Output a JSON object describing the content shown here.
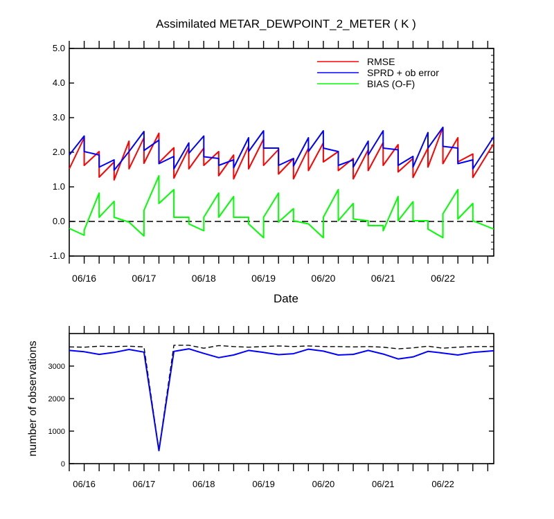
{
  "chart_data": [
    {
      "type": "line",
      "title": "Assimilated METAR_DEWPOINT_2_METER ( K )",
      "xlabel": "Date",
      "ylabel": "",
      "xlim": [
        15.75,
        22.85
      ],
      "ylim": [
        -1.0,
        5.0
      ],
      "yticks": [
        "-1.0",
        "0.0",
        "1.0",
        "2.0",
        "3.0",
        "4.0",
        "5.0"
      ],
      "xticks": [
        {
          "x": 16.0,
          "label": "06/16"
        },
        {
          "x": 17.0,
          "label": "06/17"
        },
        {
          "x": 18.0,
          "label": "06/18"
        },
        {
          "x": 19.0,
          "label": "06/19"
        },
        {
          "x": 20.0,
          "label": "06/20"
        },
        {
          "x": 21.0,
          "label": "06/21"
        },
        {
          "x": 22.0,
          "label": "06/22"
        }
      ],
      "reference_line": 0.0,
      "legend": {
        "placement": "top-right",
        "entries": [
          "RMSE",
          "SPRD + ob error",
          "BIAS (O-F)"
        ]
      },
      "series": [
        {
          "name": "RMSE",
          "color": "#ff0000",
          "points": [
            [
              15.75,
              1.52
            ],
            [
              16.0,
              2.42
            ],
            [
              16.0,
              1.62
            ],
            [
              16.25,
              2.02
            ],
            [
              16.25,
              1.28
            ],
            [
              16.5,
              1.72
            ],
            [
              16.5,
              1.2
            ],
            [
              16.75,
              2.32
            ],
            [
              16.75,
              1.52
            ],
            [
              17.0,
              2.42
            ],
            [
              17.0,
              1.68
            ],
            [
              17.25,
              2.55
            ],
            [
              17.25,
              1.7
            ],
            [
              17.5,
              2.13
            ],
            [
              17.5,
              1.25
            ],
            [
              17.75,
              2.12
            ],
            [
              17.75,
              1.52
            ],
            [
              18.0,
              2.12
            ],
            [
              18.0,
              1.62
            ],
            [
              18.25,
              2.02
            ],
            [
              18.25,
              1.32
            ],
            [
              18.5,
              1.92
            ],
            [
              18.5,
              1.23
            ],
            [
              18.75,
              2.18
            ],
            [
              18.75,
              1.52
            ],
            [
              19.0,
              2.38
            ],
            [
              19.0,
              1.62
            ],
            [
              19.25,
              2.08
            ],
            [
              19.25,
              1.37
            ],
            [
              19.5,
              1.82
            ],
            [
              19.5,
              1.23
            ],
            [
              19.75,
              2.12
            ],
            [
              19.75,
              1.47
            ],
            [
              20.0,
              2.27
            ],
            [
              20.0,
              1.72
            ],
            [
              20.25,
              2.02
            ],
            [
              20.25,
              1.47
            ],
            [
              20.5,
              1.82
            ],
            [
              20.5,
              1.23
            ],
            [
              20.75,
              2.07
            ],
            [
              20.75,
              1.47
            ],
            [
              21.0,
              2.28
            ],
            [
              21.0,
              1.62
            ],
            [
              21.25,
              2.22
            ],
            [
              21.25,
              1.43
            ],
            [
              21.5,
              1.82
            ],
            [
              21.5,
              1.27
            ],
            [
              21.75,
              2.12
            ],
            [
              21.75,
              1.57
            ],
            [
              22.0,
              2.72
            ],
            [
              22.0,
              1.67
            ],
            [
              22.25,
              2.42
            ],
            [
              22.25,
              1.72
            ],
            [
              22.5,
              1.95
            ],
            [
              22.5,
              1.27
            ],
            [
              22.85,
              2.25
            ]
          ]
        },
        {
          "name": "SPRD + ob error",
          "color": "#0000ff",
          "points": [
            [
              15.75,
              1.92
            ],
            [
              16.0,
              2.47
            ],
            [
              16.0,
              2.02
            ],
            [
              16.25,
              1.92
            ],
            [
              16.25,
              1.57
            ],
            [
              16.5,
              1.78
            ],
            [
              16.5,
              1.48
            ],
            [
              16.75,
              2.02
            ],
            [
              16.75,
              2.02
            ],
            [
              17.0,
              2.6
            ],
            [
              17.0,
              2.05
            ],
            [
              17.25,
              2.35
            ],
            [
              17.25,
              1.67
            ],
            [
              17.5,
              1.88
            ],
            [
              17.5,
              1.52
            ],
            [
              17.75,
              2.27
            ],
            [
              17.75,
              1.97
            ],
            [
              18.0,
              2.47
            ],
            [
              18.0,
              1.87
            ],
            [
              18.25,
              1.82
            ],
            [
              18.25,
              1.62
            ],
            [
              18.5,
              1.78
            ],
            [
              18.5,
              1.55
            ],
            [
              18.75,
              2.42
            ],
            [
              18.75,
              2.02
            ],
            [
              19.0,
              2.62
            ],
            [
              19.0,
              2.12
            ],
            [
              19.25,
              2.12
            ],
            [
              19.25,
              1.62
            ],
            [
              19.5,
              1.82
            ],
            [
              19.5,
              1.6
            ],
            [
              19.75,
              2.42
            ],
            [
              19.75,
              2.02
            ],
            [
              20.0,
              2.62
            ],
            [
              20.0,
              2.12
            ],
            [
              20.25,
              2.02
            ],
            [
              20.25,
              1.62
            ],
            [
              20.5,
              1.78
            ],
            [
              20.5,
              1.57
            ],
            [
              20.75,
              2.32
            ],
            [
              20.75,
              1.92
            ],
            [
              21.0,
              2.62
            ],
            [
              21.0,
              2.12
            ],
            [
              21.25,
              2.07
            ],
            [
              21.25,
              1.62
            ],
            [
              21.5,
              1.88
            ],
            [
              21.5,
              1.57
            ],
            [
              21.75,
              2.57
            ],
            [
              21.75,
              2.12
            ],
            [
              22.0,
              2.72
            ],
            [
              22.0,
              2.17
            ],
            [
              22.25,
              2.12
            ],
            [
              22.25,
              1.67
            ],
            [
              22.5,
              1.78
            ],
            [
              22.5,
              1.52
            ],
            [
              22.85,
              2.45
            ]
          ]
        },
        {
          "name": "BIAS (O-F)",
          "color": "#00ff00",
          "points": [
            [
              15.75,
              -0.2
            ],
            [
              16.0,
              -0.4
            ],
            [
              16.0,
              -0.25
            ],
            [
              16.25,
              0.82
            ],
            [
              16.25,
              0.12
            ],
            [
              16.5,
              0.58
            ],
            [
              16.5,
              0.12
            ],
            [
              16.75,
              -0.02
            ],
            [
              16.75,
              -0.02
            ],
            [
              17.0,
              -0.42
            ],
            [
              17.0,
              0.32
            ],
            [
              17.25,
              1.32
            ],
            [
              17.25,
              0.52
            ],
            [
              17.5,
              0.92
            ],
            [
              17.5,
              0.12
            ],
            [
              17.75,
              0.12
            ],
            [
              17.75,
              -0.07
            ],
            [
              18.0,
              -0.27
            ],
            [
              18.0,
              0.12
            ],
            [
              18.25,
              0.82
            ],
            [
              18.25,
              0.12
            ],
            [
              18.5,
              0.72
            ],
            [
              18.5,
              0.12
            ],
            [
              18.75,
              0.12
            ],
            [
              18.75,
              -0.07
            ],
            [
              19.0,
              -0.47
            ],
            [
              19.0,
              0.12
            ],
            [
              19.25,
              0.82
            ],
            [
              19.25,
              -0.02
            ],
            [
              19.5,
              0.37
            ],
            [
              19.5,
              0.02
            ],
            [
              19.75,
              -0.07
            ],
            [
              19.75,
              -0.07
            ],
            [
              20.0,
              -0.47
            ],
            [
              20.0,
              0.12
            ],
            [
              20.25,
              0.92
            ],
            [
              20.25,
              0.02
            ],
            [
              20.5,
              0.52
            ],
            [
              20.5,
              0.07
            ],
            [
              20.75,
              0.02
            ],
            [
              20.75,
              -0.12
            ],
            [
              21.0,
              -0.12
            ],
            [
              21.0,
              -0.27
            ],
            [
              21.25,
              0.72
            ],
            [
              21.25,
              0.02
            ],
            [
              21.5,
              0.57
            ],
            [
              21.5,
              0.02
            ],
            [
              21.75,
              0.02
            ],
            [
              21.75,
              -0.22
            ],
            [
              22.0,
              -0.47
            ],
            [
              22.0,
              0.22
            ],
            [
              22.25,
              0.92
            ],
            [
              22.25,
              0.07
            ],
            [
              22.5,
              0.52
            ],
            [
              22.5,
              0.02
            ],
            [
              22.85,
              -0.22
            ]
          ]
        }
      ]
    },
    {
      "type": "line",
      "title": "",
      "xlabel": "",
      "ylabel": "number of observations",
      "xlim": [
        15.75,
        22.85
      ],
      "ylim": [
        0,
        4000
      ],
      "yticks": [
        "0",
        "1000",
        "2000",
        "3000"
      ],
      "xticks": [
        {
          "x": 16.0,
          "label": "06/16"
        },
        {
          "x": 17.0,
          "label": "06/17"
        },
        {
          "x": 18.0,
          "label": "06/18"
        },
        {
          "x": 19.0,
          "label": "06/19"
        },
        {
          "x": 20.0,
          "label": "06/20"
        },
        {
          "x": 21.0,
          "label": "06/21"
        },
        {
          "x": 22.0,
          "label": "06/22"
        }
      ],
      "series": [
        {
          "name": "",
          "color": "#000000",
          "dashed": true,
          "points": [
            [
              15.75,
              3590
            ],
            [
              16.0,
              3580
            ],
            [
              16.25,
              3610
            ],
            [
              16.5,
              3600
            ],
            [
              16.75,
              3610
            ],
            [
              17.0,
              3590
            ],
            [
              17.25,
              420
            ],
            [
              17.5,
              3640
            ],
            [
              17.75,
              3640
            ],
            [
              18.0,
              3550
            ],
            [
              18.25,
              3630
            ],
            [
              18.5,
              3600
            ],
            [
              18.75,
              3580
            ],
            [
              19.0,
              3600
            ],
            [
              19.25,
              3620
            ],
            [
              19.5,
              3600
            ],
            [
              19.75,
              3620
            ],
            [
              20.0,
              3600
            ],
            [
              20.25,
              3600
            ],
            [
              20.5,
              3590
            ],
            [
              20.75,
              3600
            ],
            [
              21.0,
              3580
            ],
            [
              21.25,
              3530
            ],
            [
              21.5,
              3560
            ],
            [
              21.75,
              3610
            ],
            [
              22.0,
              3550
            ],
            [
              22.25,
              3580
            ],
            [
              22.5,
              3600
            ],
            [
              22.85,
              3600
            ]
          ]
        },
        {
          "name": "",
          "color": "#0000ff",
          "dashed": false,
          "points": [
            [
              15.75,
              3480
            ],
            [
              16.0,
              3440
            ],
            [
              16.25,
              3360
            ],
            [
              16.5,
              3420
            ],
            [
              16.75,
              3510
            ],
            [
              17.0,
              3430
            ],
            [
              17.25,
              400
            ],
            [
              17.5,
              3450
            ],
            [
              17.75,
              3530
            ],
            [
              18.0,
              3390
            ],
            [
              18.25,
              3260
            ],
            [
              18.5,
              3340
            ],
            [
              18.75,
              3480
            ],
            [
              19.0,
              3420
            ],
            [
              19.25,
              3350
            ],
            [
              19.5,
              3380
            ],
            [
              19.75,
              3520
            ],
            [
              20.0,
              3460
            ],
            [
              20.25,
              3340
            ],
            [
              20.5,
              3360
            ],
            [
              20.75,
              3480
            ],
            [
              21.0,
              3370
            ],
            [
              21.25,
              3220
            ],
            [
              21.5,
              3280
            ],
            [
              21.75,
              3450
            ],
            [
              22.0,
              3400
            ],
            [
              22.25,
              3340
            ],
            [
              22.5,
              3420
            ],
            [
              22.85,
              3470
            ]
          ]
        }
      ]
    }
  ]
}
